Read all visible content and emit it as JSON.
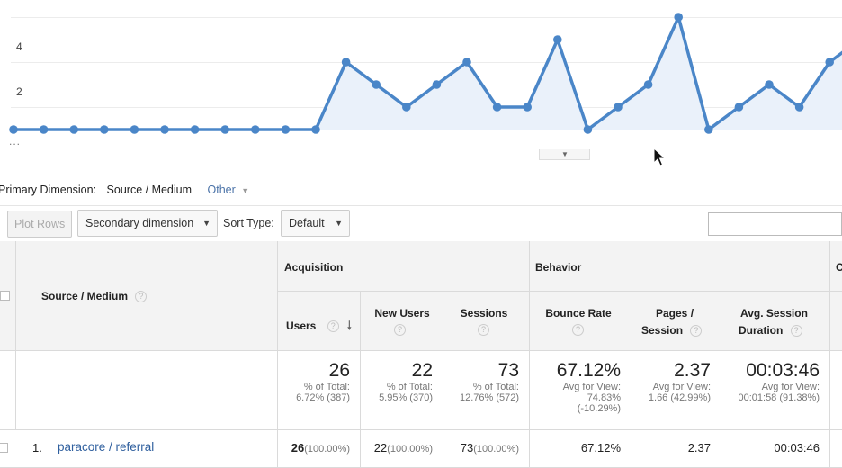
{
  "chart_data": {
    "type": "area",
    "y_ticks": [
      "4",
      "2"
    ],
    "ylim": [
      0,
      5
    ],
    "series": [
      {
        "values": [
          0,
          0,
          0,
          0,
          0,
          0,
          0,
          0,
          0,
          0,
          0,
          3,
          2,
          1,
          2,
          3,
          1,
          1,
          4,
          0,
          1,
          2,
          5,
          0,
          1,
          2,
          1,
          3,
          4
        ]
      }
    ],
    "color": "#4a86c8",
    "fill": "#eaf1fa",
    "grid": true,
    "overflow_label": "..."
  },
  "primary_dimension": {
    "label": "Primary Dimension:",
    "selected": "Source / Medium",
    "other": "Other"
  },
  "toolbar": {
    "plot_rows": "Plot Rows",
    "secondary_dimension": "Secondary dimension",
    "sort_type_label": "Sort Type:",
    "sort_type_value": "Default"
  },
  "table": {
    "dimension_header": "Source / Medium",
    "groups": {
      "acquisition": "Acquisition",
      "behavior": "Behavior",
      "conversions_partial": "C"
    },
    "columns": {
      "users": "Users",
      "new_users": "New Users",
      "sessions": "Sessions",
      "bounce_rate": "Bounce Rate",
      "pages_session_1": "Pages /",
      "pages_session_2": "Session",
      "avg_session_1": "Avg. Session",
      "avg_session_2": "Duration"
    },
    "totals": {
      "users": {
        "value": "26",
        "line1": "% of Total:",
        "line2": "6.72% (387)"
      },
      "new_users": {
        "value": "22",
        "line1": "% of Total:",
        "line2": "5.95% (370)"
      },
      "sessions": {
        "value": "73",
        "line1": "% of Total:",
        "line2": "12.76% (572)"
      },
      "bounce_rate": {
        "value": "67.12%",
        "line1": "Avg for View:",
        "line2": "74.83%",
        "line3": "(-10.29%)"
      },
      "pages_session": {
        "value": "2.37",
        "line1": "Avg for View:",
        "line2": "1.66 (42.99%)"
      },
      "avg_session": {
        "value": "00:03:46",
        "line1": "Avg for View:",
        "line2": "00:01:58 (91.38%)"
      }
    },
    "rows": [
      {
        "index": "1.",
        "source": "paracore / referral",
        "users": "26",
        "users_pct": "(100.00%)",
        "new_users": "22",
        "new_users_pct": "(100.00%)",
        "sessions": "73",
        "sessions_pct": "(100.00%)",
        "bounce_rate": "67.12%",
        "pages_session": "2.37",
        "avg_session": "00:03:46"
      }
    ]
  }
}
